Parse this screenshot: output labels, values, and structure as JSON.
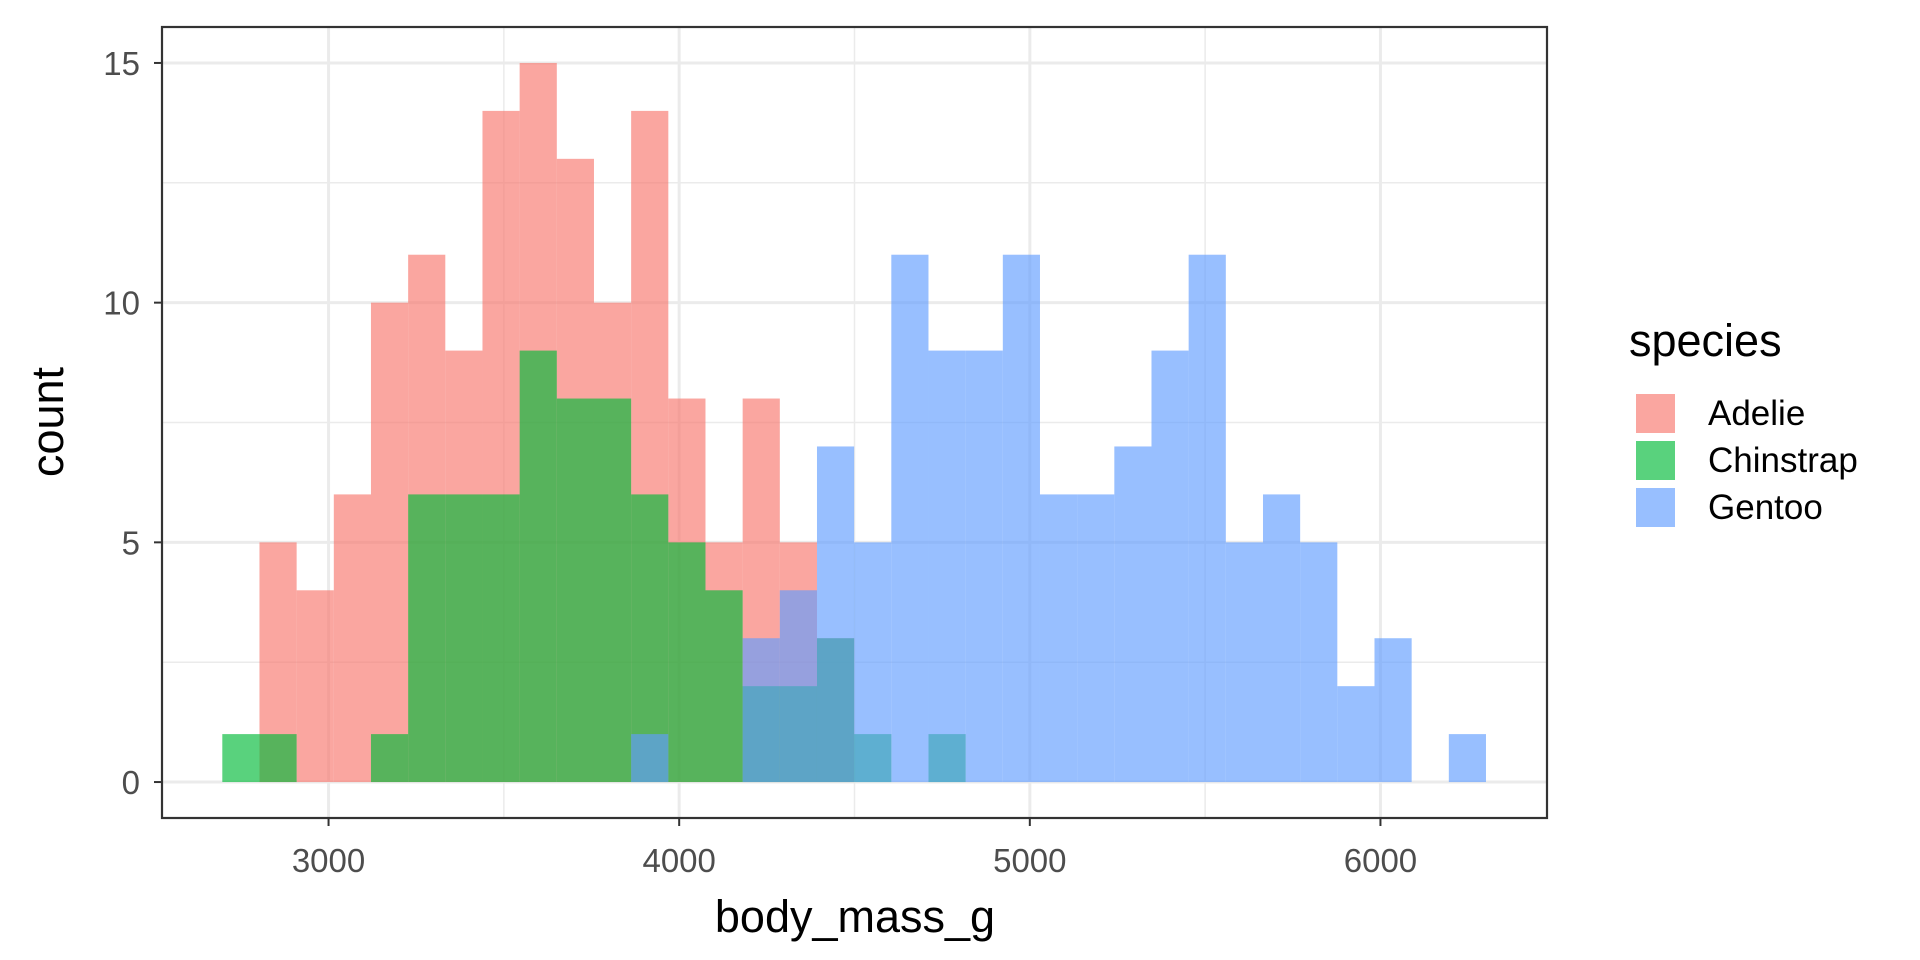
{
  "chart_data": {
    "type": "histogram",
    "xlabel": "body_mass_g",
    "ylabel": "count",
    "xlim": [
      2525,
      6475
    ],
    "ylim": [
      -0.75,
      15.75
    ],
    "x_ticks": [
      3000,
      4000,
      5000,
      6000
    ],
    "x_tick_labels": [
      "3000",
      "4000",
      "5000",
      "6000"
    ],
    "y_ticks": [
      0,
      5,
      10,
      15
    ],
    "y_tick_labels": [
      "0",
      "5",
      "10",
      "15"
    ],
    "grid": true,
    "legend": {
      "title": "species",
      "placement": "right"
    },
    "bin_width": 105.9,
    "series": [
      {
        "name": "Adelie",
        "color": "#F8766D",
        "bins": [
          {
            "x0": 2803,
            "x1": 2909,
            "count": 5
          },
          {
            "x0": 2909,
            "x1": 3015,
            "count": 4
          },
          {
            "x0": 3015,
            "x1": 3121,
            "count": 6
          },
          {
            "x0": 3121,
            "x1": 3227,
            "count": 10
          },
          {
            "x0": 3227,
            "x1": 3333,
            "count": 11
          },
          {
            "x0": 3333,
            "x1": 3439,
            "count": 9
          },
          {
            "x0": 3439,
            "x1": 3545,
            "count": 14
          },
          {
            "x0": 3545,
            "x1": 3651,
            "count": 15
          },
          {
            "x0": 3651,
            "x1": 3757,
            "count": 13
          },
          {
            "x0": 3757,
            "x1": 3863,
            "count": 10
          },
          {
            "x0": 3863,
            "x1": 3969,
            "count": 14
          },
          {
            "x0": 3969,
            "x1": 4075,
            "count": 8
          },
          {
            "x0": 4075,
            "x1": 4181,
            "count": 5
          },
          {
            "x0": 4181,
            "x1": 4287,
            "count": 8
          },
          {
            "x0": 4287,
            "x1": 4393,
            "count": 5
          },
          {
            "x0": 4393,
            "x1": 4499,
            "count": 3
          }
        ]
      },
      {
        "name": "Chinstrap",
        "color": "#00BA38",
        "bins": [
          {
            "x0": 2697,
            "x1": 2803,
            "count": 1
          },
          {
            "x0": 2803,
            "x1": 2909,
            "count": 1
          },
          {
            "x0": 3121,
            "x1": 3227,
            "count": 1
          },
          {
            "x0": 3227,
            "x1": 3333,
            "count": 6
          },
          {
            "x0": 3333,
            "x1": 3439,
            "count": 6
          },
          {
            "x0": 3439,
            "x1": 3545,
            "count": 6
          },
          {
            "x0": 3545,
            "x1": 3651,
            "count": 9
          },
          {
            "x0": 3651,
            "x1": 3757,
            "count": 8
          },
          {
            "x0": 3757,
            "x1": 3863,
            "count": 8
          },
          {
            "x0": 3863,
            "x1": 3969,
            "count": 6
          },
          {
            "x0": 3969,
            "x1": 4075,
            "count": 5
          },
          {
            "x0": 4075,
            "x1": 4181,
            "count": 4
          },
          {
            "x0": 4181,
            "x1": 4287,
            "count": 2
          },
          {
            "x0": 4287,
            "x1": 4393,
            "count": 2
          },
          {
            "x0": 4393,
            "x1": 4499,
            "count": 3
          },
          {
            "x0": 4499,
            "x1": 4605,
            "count": 1
          },
          {
            "x0": 4711,
            "x1": 4817,
            "count": 1
          }
        ]
      },
      {
        "name": "Gentoo",
        "color": "#619CFF",
        "bins": [
          {
            "x0": 3863,
            "x1": 3969,
            "count": 1
          },
          {
            "x0": 4181,
            "x1": 4287,
            "count": 3
          },
          {
            "x0": 4287,
            "x1": 4393,
            "count": 4
          },
          {
            "x0": 4393,
            "x1": 4499,
            "count": 7
          },
          {
            "x0": 4499,
            "x1": 4605,
            "count": 5
          },
          {
            "x0": 4605,
            "x1": 4711,
            "count": 11
          },
          {
            "x0": 4711,
            "x1": 4817,
            "count": 9
          },
          {
            "x0": 4817,
            "x1": 4923,
            "count": 9
          },
          {
            "x0": 4923,
            "x1": 5029,
            "count": 11
          },
          {
            "x0": 5029,
            "x1": 5135,
            "count": 6
          },
          {
            "x0": 5135,
            "x1": 5241,
            "count": 6
          },
          {
            "x0": 5241,
            "x1": 5347,
            "count": 7
          },
          {
            "x0": 5347,
            "x1": 5453,
            "count": 9
          },
          {
            "x0": 5453,
            "x1": 5559,
            "count": 11
          },
          {
            "x0": 5559,
            "x1": 5665,
            "count": 5
          },
          {
            "x0": 5665,
            "x1": 5771,
            "count": 6
          },
          {
            "x0": 5771,
            "x1": 5877,
            "count": 5
          },
          {
            "x0": 5877,
            "x1": 5983,
            "count": 2
          },
          {
            "x0": 5983,
            "x1": 6089,
            "count": 3
          },
          {
            "x0": 6195,
            "x1": 6301,
            "count": 1
          }
        ]
      }
    ]
  }
}
